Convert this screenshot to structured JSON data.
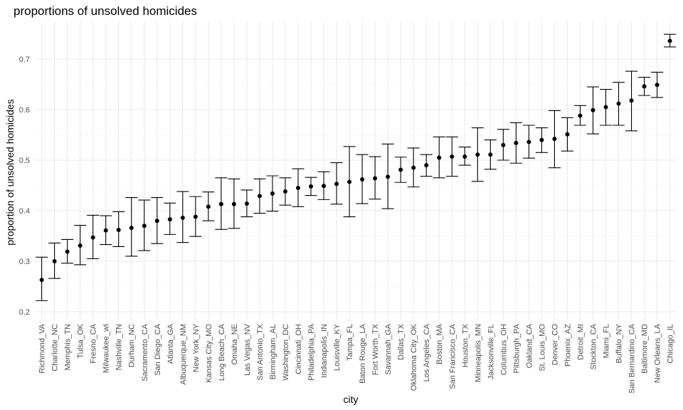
{
  "chart_data": {
    "type": "scatter",
    "title": "proportions of unsolved homicides",
    "xlabel": "city",
    "ylabel": "proportion of unsolved homicides",
    "ylim": [
      0.2,
      0.75
    ],
    "yticks": [
      0.2,
      0.3,
      0.4,
      0.5,
      0.6,
      0.7
    ],
    "ytick_labels": [
      "0.2",
      "0.3",
      "0.4",
      "0.5",
      "0.6",
      "0.7"
    ],
    "grid": true,
    "legend": "none",
    "error_bars": true,
    "categories": [
      "Richmond_VA",
      "Charlotte_NC",
      "Memphis_TN",
      "Tulsa_OK",
      "Fresno_CA",
      "Milwaukee_wI",
      "Nashville_TN",
      "Durham_NC",
      "Sacramento_CA",
      "San Diego_CA",
      "Atlanta_GA",
      "Albuquerque_NM",
      "New York_NY",
      "Kansas City_MO",
      "Long Beach_CA",
      "Omaha_NE",
      "Las Vegas_NV",
      "San Antonio_TX",
      "Birmingham_AL",
      "Washington_DC",
      "Cincinnati_OH",
      "Philadelphia_PA",
      "Indianapolis_IN",
      "Louisville_KY",
      "Tampa_FL",
      "Baton Rouge_LA",
      "Fort Worth_TX",
      "Savannah_GA",
      "Dallas_TX",
      "Oklahoma City_OK",
      "Los Angeles_CA",
      "Boston_MA",
      "San Francisco_CA",
      "Houston_TX",
      "Minneapolis_MN",
      "Jacksonville_FL",
      "Columbus_OH",
      "Pittsburgh_PA",
      "Oakland_CA",
      "St. Louis_MO",
      "Denver_CO",
      "Phoenix_AZ",
      "Detroit_MI",
      "Stockton_CA",
      "Miami_FL",
      "Buffalo_NY",
      "San Bernardino_CA",
      "Baltimore_MD",
      "New Orleans_LA",
      "Chicago_IL"
    ],
    "series": [
      {
        "values": [
          0.263,
          0.3,
          0.319,
          0.331,
          0.347,
          0.361,
          0.362,
          0.366,
          0.37,
          0.38,
          0.383,
          0.386,
          0.388,
          0.408,
          0.413,
          0.413,
          0.414,
          0.429,
          0.434,
          0.438,
          0.445,
          0.448,
          0.449,
          0.453,
          0.457,
          0.462,
          0.464,
          0.467,
          0.481,
          0.485,
          0.49,
          0.505,
          0.507,
          0.507,
          0.511,
          0.511,
          0.53,
          0.534,
          0.536,
          0.54,
          0.542,
          0.551,
          0.588,
          0.599,
          0.605,
          0.612,
          0.618,
          0.646,
          0.649,
          0.736
        ],
        "lower": [
          0.222,
          0.266,
          0.296,
          0.293,
          0.305,
          0.333,
          0.329,
          0.31,
          0.321,
          0.335,
          0.353,
          0.337,
          0.349,
          0.38,
          0.363,
          0.365,
          0.388,
          0.395,
          0.399,
          0.411,
          0.408,
          0.43,
          0.422,
          0.413,
          0.388,
          0.414,
          0.423,
          0.404,
          0.456,
          0.447,
          0.468,
          0.465,
          0.468,
          0.49,
          0.458,
          0.482,
          0.5,
          0.494,
          0.504,
          0.515,
          0.485,
          0.518,
          0.569,
          0.552,
          0.569,
          0.569,
          0.558,
          0.628,
          0.624,
          0.724
        ],
        "upper": [
          0.308,
          0.336,
          0.343,
          0.371,
          0.391,
          0.39,
          0.398,
          0.426,
          0.421,
          0.426,
          0.415,
          0.438,
          0.428,
          0.437,
          0.465,
          0.463,
          0.441,
          0.463,
          0.469,
          0.465,
          0.483,
          0.466,
          0.477,
          0.495,
          0.527,
          0.511,
          0.507,
          0.532,
          0.506,
          0.524,
          0.511,
          0.546,
          0.546,
          0.526,
          0.564,
          0.54,
          0.561,
          0.574,
          0.569,
          0.564,
          0.598,
          0.584,
          0.608,
          0.645,
          0.64,
          0.654,
          0.676,
          0.664,
          0.674,
          0.749
        ]
      }
    ]
  }
}
